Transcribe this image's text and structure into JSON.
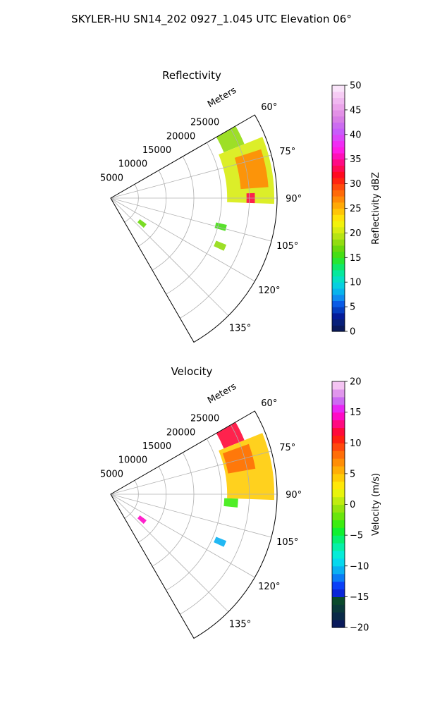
{
  "figure": {
    "suptitle": "SKYLER-HU  SN14_202  0927_1.045 UTC Elevation 06°"
  },
  "chart_data": [
    {
      "type": "heatmap",
      "title": "Reflectivity",
      "projection": "polar-sector",
      "azimuth_range_deg": [
        60,
        150
      ],
      "radial_range_m": [
        0,
        30000
      ],
      "radial_label": "Meters",
      "radial_ticks": [
        5000,
        10000,
        15000,
        20000,
        25000
      ],
      "radial_tick_labels": [
        "5000",
        "10000",
        "15000",
        "20000",
        "25000"
      ],
      "angular_ticks": [
        60,
        75,
        90,
        105,
        120,
        135
      ],
      "angular_tick_labels": [
        "60°",
        "75°",
        "90°",
        "105°",
        "120°",
        "135°"
      ],
      "grid": true,
      "colorbar": {
        "label": "Reflectivity dBZ",
        "range": [
          0,
          50
        ],
        "ticks": [
          0,
          5,
          10,
          15,
          20,
          25,
          30,
          35,
          40,
          45,
          50
        ],
        "tick_labels": [
          "0",
          "5",
          "10",
          "15",
          "20",
          "25",
          "30",
          "35",
          "40",
          "45",
          "50"
        ],
        "levels": 40,
        "palette": [
          "#0a1a5c",
          "#08207a",
          "#051c9a",
          "#063ec0",
          "#0a5be6",
          "#0f8cf0",
          "#08b4ec",
          "#07cfe0",
          "#05dfc4",
          "#05e89c",
          "#0fe86a",
          "#27e632",
          "#46de14",
          "#6ad80c",
          "#92dc10",
          "#b6e414",
          "#d8ec12",
          "#f2f20c",
          "#ffe208",
          "#ffc506",
          "#ffa906",
          "#ff8a06",
          "#ff6a08",
          "#ff4a0c",
          "#ff2410",
          "#ff0a20",
          "#ff0a52",
          "#ff0a84",
          "#ff10b8",
          "#ff1ce4",
          "#f02cf4",
          "#dc46f8",
          "#c85cfa",
          "#cc6cf0",
          "#d87ee6",
          "#e290e6",
          "#eaa4ea",
          "#f0b8f0",
          "#f6ccf4",
          "#fae4fa"
        ]
      },
      "echo_regions": [
        {
          "azimuth": [
            60,
            68
          ],
          "range_m": [
            22000,
            26000
          ],
          "value": 18
        },
        {
          "azimuth": [
            68,
            92
          ],
          "range_m": [
            21000,
            29500
          ],
          "value": 20
        },
        {
          "azimuth": [
            72,
            86
          ],
          "range_m": [
            23500,
            28500
          ],
          "value": 27
        },
        {
          "azimuth": [
            88,
            92
          ],
          "range_m": [
            24500,
            26000
          ],
          "value": 33
        },
        {
          "azimuth": [
            126,
            132
          ],
          "range_m": [
            6500,
            8000
          ],
          "value": 17
        },
        {
          "azimuth": [
            103,
            106
          ],
          "range_m": [
            19500,
            21500
          ],
          "value": 16
        },
        {
          "azimuth": [
            112,
            115
          ],
          "range_m": [
            20500,
            22500
          ],
          "value": 18
        }
      ]
    },
    {
      "type": "heatmap",
      "title": "Velocity",
      "projection": "polar-sector",
      "azimuth_range_deg": [
        60,
        150
      ],
      "radial_range_m": [
        0,
        30000
      ],
      "radial_label": "Meters",
      "radial_ticks": [
        5000,
        10000,
        15000,
        20000,
        25000
      ],
      "radial_tick_labels": [
        "5000",
        "10000",
        "15000",
        "20000",
        "25000"
      ],
      "angular_ticks": [
        60,
        75,
        90,
        105,
        120,
        135
      ],
      "angular_tick_labels": [
        "60°",
        "75°",
        "90°",
        "105°",
        "120°",
        "135°"
      ],
      "grid": true,
      "colorbar": {
        "label": "Velocity (m/s)",
        "range": [
          -20,
          20
        ],
        "ticks": [
          -20,
          -15,
          -10,
          -5,
          0,
          5,
          10,
          15,
          20
        ],
        "tick_labels": [
          "−20",
          "−15",
          "−10",
          "−5",
          "0",
          "5",
          "10",
          "15",
          "20"
        ],
        "levels": 32,
        "palette": [
          "#0a1a5c",
          "#0a2a48",
          "#0a3a3a",
          "#0a4a2c",
          "#0a26d8",
          "#0a40f8",
          "#0a7cf6",
          "#0ab0f2",
          "#06d8ee",
          "#06ecd8",
          "#06f0a8",
          "#06f070",
          "#10f030",
          "#3cec10",
          "#6ae60c",
          "#96e40e",
          "#c0ec10",
          "#e8f40c",
          "#ffe808",
          "#ffcc06",
          "#ffae06",
          "#ff8e06",
          "#ff6e08",
          "#ff480c",
          "#ff2010",
          "#ff0a3a",
          "#ff0a80",
          "#ff0ac6",
          "#e826f4",
          "#cc6af2",
          "#e096ec",
          "#f4c4f2"
        ]
      },
      "echo_regions": [
        {
          "azimuth": [
            60,
            68
          ],
          "range_m": [
            22000,
            26000
          ],
          "value": 12
        },
        {
          "azimuth": [
            68,
            92
          ],
          "range_m": [
            21000,
            29500
          ],
          "value": 4
        },
        {
          "azimuth": [
            70,
            80
          ],
          "range_m": [
            21500,
            26500
          ],
          "value": 8
        },
        {
          "azimuth": [
            92,
            96
          ],
          "range_m": [
            20500,
            23000
          ],
          "value": -3
        },
        {
          "azimuth": [
            126,
            132
          ],
          "range_m": [
            6500,
            8000
          ],
          "value": 14
        },
        {
          "azimuth": [
            112,
            115
          ],
          "range_m": [
            20500,
            22500
          ],
          "value": -11
        }
      ]
    }
  ]
}
